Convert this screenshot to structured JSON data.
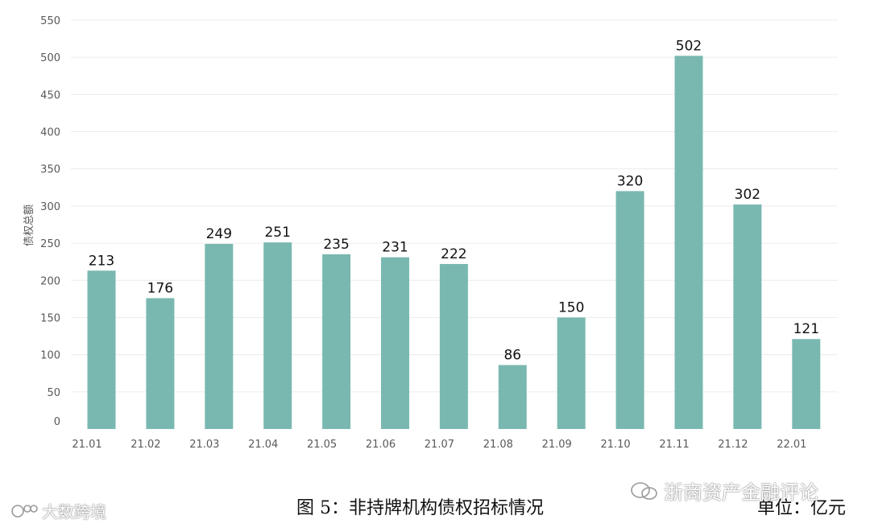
{
  "chart_data": {
    "type": "bar",
    "categories": [
      "21.01",
      "21.02",
      "21.03",
      "21.04",
      "21.05",
      "21.06",
      "21.07",
      "21.08",
      "21.09",
      "21.10",
      "21.11",
      "21.12",
      "22.01"
    ],
    "values": [
      213,
      176,
      249,
      251,
      235,
      231,
      222,
      86,
      150,
      320,
      502,
      302,
      121
    ],
    "ylabel": "债权总额",
    "ylim": [
      0,
      550
    ],
    "yticks": [
      0,
      50,
      100,
      150,
      200,
      250,
      300,
      350,
      400,
      450,
      500,
      550
    ],
    "grid": true,
    "bar_color": "#79b8b0"
  },
  "caption": "图 5：非持牌机构债权招标情况",
  "unit": "单位：亿元",
  "watermark_wechat": "浙商资产金融评论",
  "watermark_left": "大数跨境"
}
